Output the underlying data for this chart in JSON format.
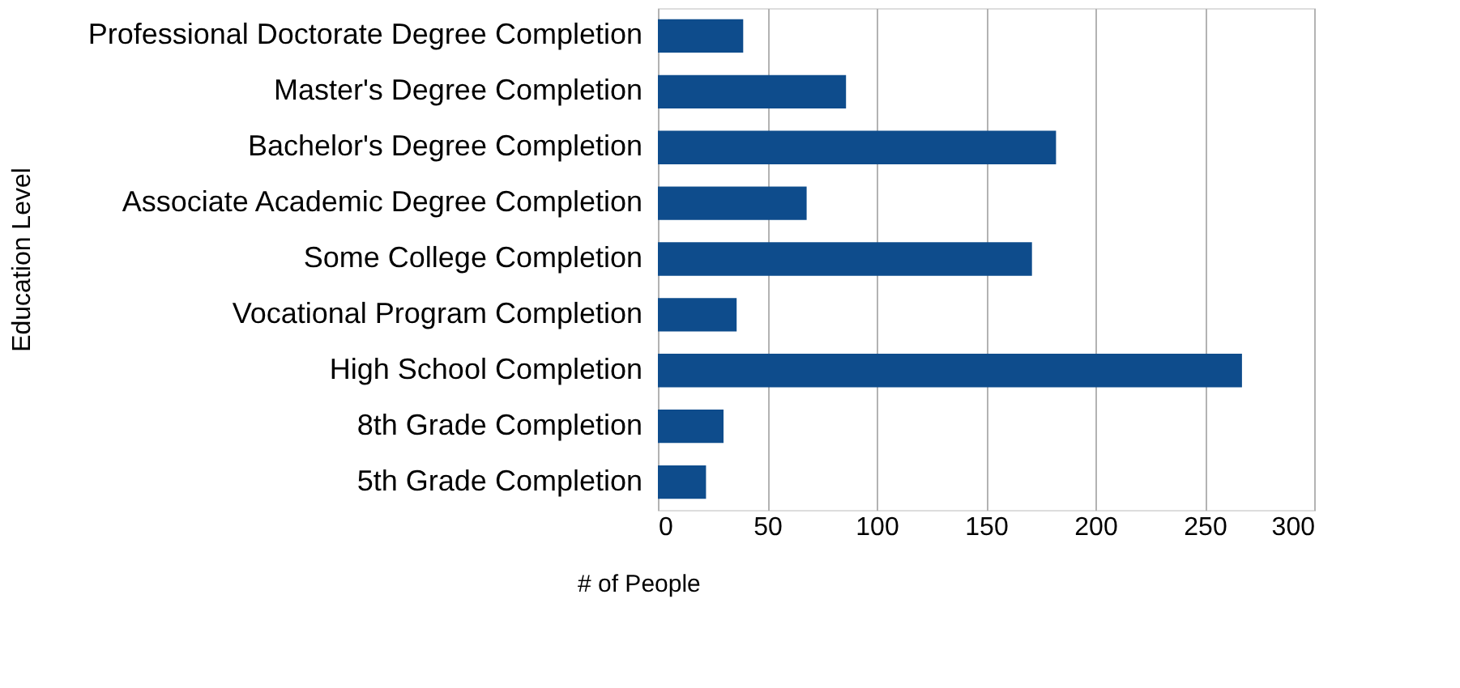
{
  "chart_data": {
    "type": "bar",
    "orientation": "horizontal",
    "xlabel": "# of People",
    "ylabel": "Education Level",
    "categories": [
      "Professional Doctorate Degree Completion",
      "Master's Degree Completion",
      "Bachelor's Degree Completion",
      "Associate Academic Degree Completion",
      "Some College Completion",
      "Vocational Program Completion",
      "High School Completion",
      "8th Grade Completion",
      "5th Grade Completion"
    ],
    "values": [
      39,
      86,
      182,
      68,
      171,
      36,
      267,
      30,
      22
    ],
    "color": "#0e4c8c",
    "xlim": [
      0,
      300
    ],
    "xticks": [
      0,
      50,
      100,
      150,
      200,
      250,
      300
    ],
    "grid": "x"
  }
}
